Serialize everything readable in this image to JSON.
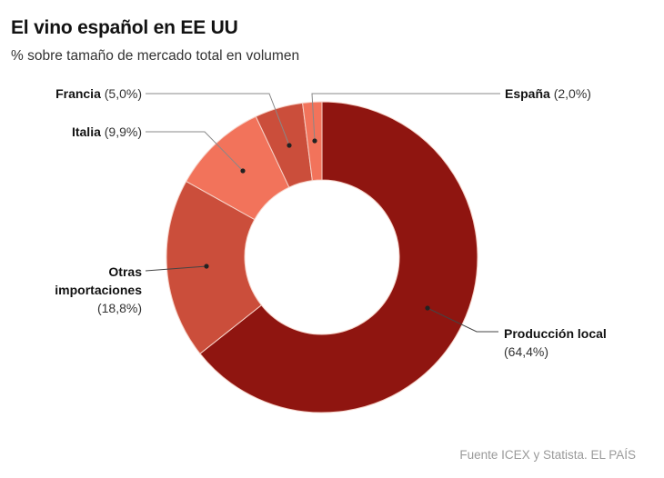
{
  "title": "El vino español en EE UU",
  "subtitle": "% sobre tamaño de mercado total en volumen",
  "source": "Fuente ICEX y Statista. EL PAÍS",
  "chart_data": {
    "type": "pie",
    "variant": "donut",
    "title": "El vino español en EE UU",
    "subtitle": "% sobre tamaño de mercado total en volumen",
    "unit": "%",
    "slices": [
      {
        "name": "Producción local",
        "value": 64.4,
        "value_label": "(64,4%)",
        "color": "#8f1510"
      },
      {
        "name": "Otras importaciones",
        "name_lines": [
          "Otras",
          "importaciones"
        ],
        "value": 18.8,
        "value_label": "(18,8%)",
        "color": "#cb4e3b"
      },
      {
        "name": "Italia",
        "value": 9.9,
        "value_label": "(9,9%)",
        "color": "#f2735b"
      },
      {
        "name": "Francia",
        "value": 5.0,
        "value_label": "(5,0%)",
        "color": "#cb4e3b"
      },
      {
        "name": "España",
        "value": 2.0,
        "value_label": "(2,0%)",
        "color": "#f2735b"
      }
    ],
    "start": "top",
    "direction": "clockwise",
    "legend": "none (direct labels with leader lines)"
  }
}
